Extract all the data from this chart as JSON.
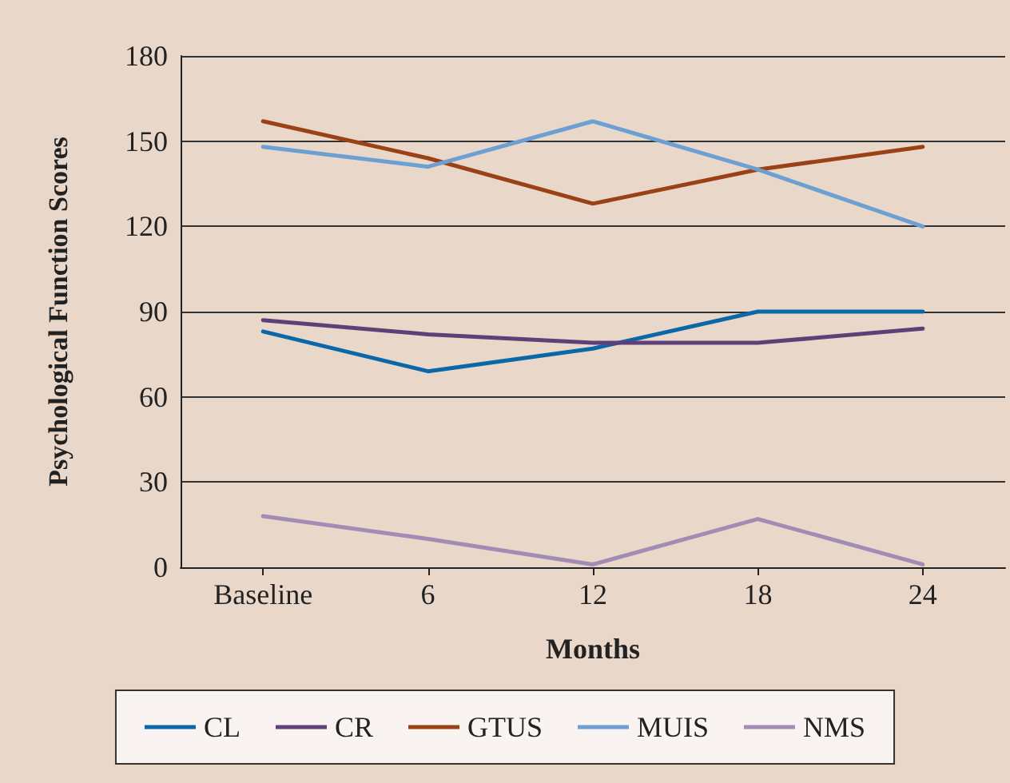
{
  "chart_data": {
    "type": "line",
    "xlabel": "Months",
    "ylabel": "Psychological Function Scores",
    "categories": [
      "Baseline",
      "6",
      "12",
      "18",
      "24"
    ],
    "series": [
      {
        "name": "CL",
        "color": "#0a68a8",
        "values": [
          83,
          69,
          77,
          90,
          90
        ]
      },
      {
        "name": "CR",
        "color": "#5e3f78",
        "values": [
          87,
          82,
          79,
          79,
          84
        ]
      },
      {
        "name": "GTUS",
        "color": "#9a4216",
        "values": [
          157,
          144,
          128,
          140,
          148
        ]
      },
      {
        "name": "MUIS",
        "color": "#6c9fd2",
        "values": [
          148,
          141,
          157,
          140,
          120
        ]
      },
      {
        "name": "NMS",
        "color": "#a08cb4",
        "values": [
          18,
          10,
          1,
          17,
          1
        ]
      }
    ],
    "ylim": [
      0,
      180
    ],
    "yticks": [
      0,
      30,
      60,
      90,
      120,
      150,
      180
    ],
    "grid": "y",
    "legend": "bottom",
    "marker": "none",
    "line_style": "solid"
  }
}
